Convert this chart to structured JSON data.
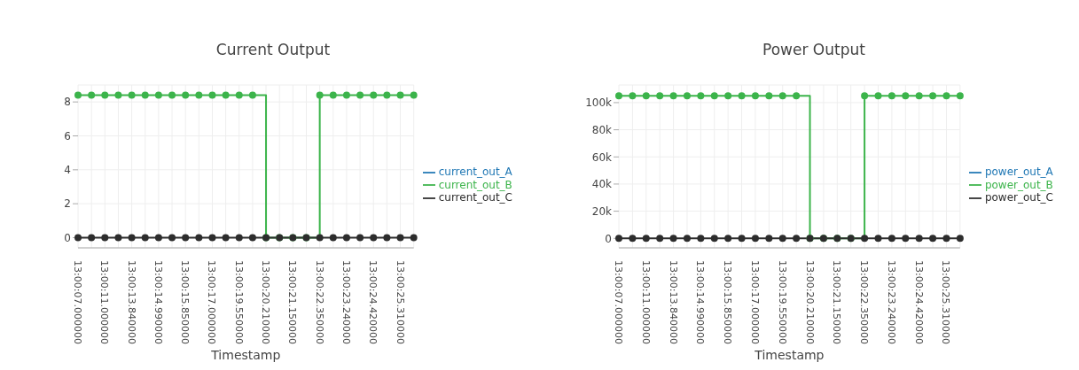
{
  "chart_data": [
    {
      "type": "step",
      "title": "Current Output",
      "xlabel": "Timestamp",
      "categories": [
        "13:00:07.000000",
        null,
        "13:00:11.000000",
        null,
        "13:00:13.840000",
        null,
        "13:00:14.990000",
        null,
        "13:00:15.850000",
        null,
        "13:00:17.000000",
        null,
        "13:00:19.550000",
        null,
        "13:00:20.210000",
        null,
        "13:00:21.150000",
        null,
        "13:00:22.350000",
        null,
        "13:00:23.240000",
        null,
        "13:00:24.420000",
        null,
        "13:00:25.310000",
        null
      ],
      "series": [
        {
          "name": "current_out_A",
          "color": "#1f77b4",
          "values": [
            null,
            null,
            null,
            null,
            null,
            null,
            null,
            null,
            null,
            null,
            null,
            null,
            null,
            null,
            null,
            null,
            null,
            null,
            null,
            null,
            null,
            null,
            null,
            null,
            null,
            null
          ]
        },
        {
          "name": "current_out_B",
          "color": "#3cb44b",
          "values": [
            8.4,
            8.4,
            8.4,
            8.4,
            8.4,
            8.4,
            8.4,
            8.4,
            8.4,
            8.4,
            8.4,
            8.4,
            8.4,
            8.4,
            0,
            0,
            0,
            0,
            8.4,
            8.4,
            8.4,
            8.4,
            8.4,
            8.4,
            8.4,
            8.4
          ]
        },
        {
          "name": "current_out_C",
          "color": "#2d2d2d",
          "values": [
            0,
            0,
            0,
            0,
            0,
            0,
            0,
            0,
            0,
            0,
            0,
            0,
            0,
            0,
            0,
            0,
            0,
            0,
            0,
            0,
            0,
            0,
            0,
            0,
            0,
            0
          ]
        }
      ],
      "ylim": [
        -0.6,
        9.0
      ],
      "yticks": [
        0,
        2,
        4,
        6,
        8
      ],
      "grid": true,
      "legend": "right",
      "marker": "circle",
      "line_style": "solid"
    },
    {
      "type": "step",
      "title": "Power Output",
      "xlabel": "Timestamp",
      "categories": [
        "13:00:07.000000",
        null,
        "13:00:11.000000",
        null,
        "13:00:13.840000",
        null,
        "13:00:14.990000",
        null,
        "13:00:15.850000",
        null,
        "13:00:17.000000",
        null,
        "13:00:19.550000",
        null,
        "13:00:20.210000",
        null,
        "13:00:21.150000",
        null,
        "13:00:22.350000",
        null,
        "13:00:23.240000",
        null,
        "13:00:24.420000",
        null,
        "13:00:25.310000",
        null
      ],
      "series": [
        {
          "name": "power_out_A",
          "color": "#1f77b4",
          "values": [
            null,
            null,
            null,
            null,
            null,
            null,
            null,
            null,
            null,
            null,
            null,
            null,
            null,
            null,
            null,
            null,
            null,
            null,
            null,
            null,
            null,
            null,
            null,
            null,
            null,
            null
          ]
        },
        {
          "name": "power_out_B",
          "color": "#3cb44b",
          "values": [
            105000,
            105000,
            105000,
            105000,
            105000,
            105000,
            105000,
            105000,
            105000,
            105000,
            105000,
            105000,
            105000,
            105000,
            0,
            0,
            0,
            0,
            105000,
            105000,
            105000,
            105000,
            105000,
            105000,
            105000,
            105000
          ]
        },
        {
          "name": "power_out_C",
          "color": "#2d2d2d",
          "values": [
            0,
            0,
            0,
            0,
            0,
            0,
            0,
            0,
            0,
            0,
            0,
            0,
            0,
            0,
            0,
            0,
            0,
            0,
            0,
            0,
            0,
            0,
            0,
            0,
            0,
            0
          ]
        }
      ],
      "ylim": [
        -7000,
        113000
      ],
      "yticks": [
        0,
        {
          "value": 20000,
          "label": "20k"
        },
        {
          "value": 40000,
          "label": "40k"
        },
        {
          "value": 60000,
          "label": "60k"
        },
        {
          "value": 80000,
          "label": "80k"
        },
        {
          "value": 100000,
          "label": "100k"
        }
      ],
      "grid": true,
      "legend": "right",
      "marker": "circle",
      "line_style": "solid"
    }
  ]
}
